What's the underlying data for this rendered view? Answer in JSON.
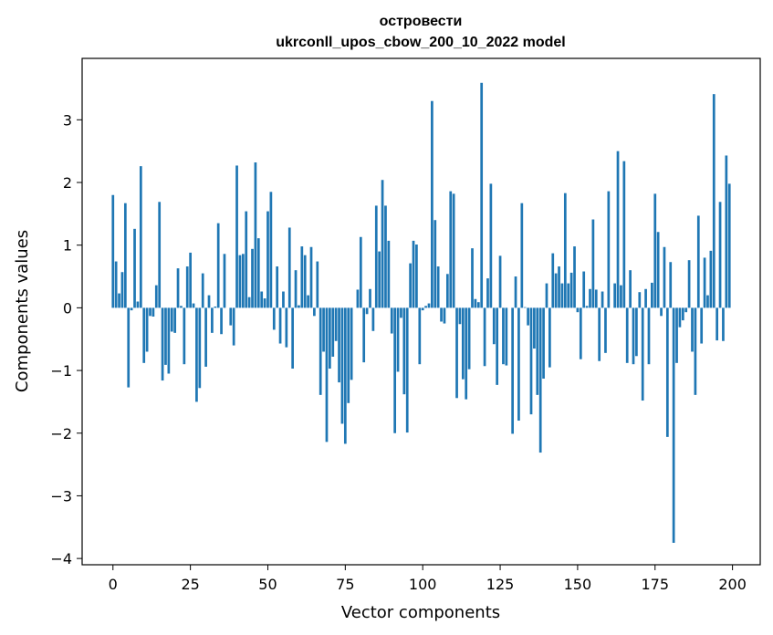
{
  "chart_data": {
    "type": "bar",
    "title": "островести",
    "subtitle": "ukrconll_upos_cbow_200_10_2022 model",
    "xlabel": "Vector components",
    "ylabel": "Components values",
    "xlim": [
      -9.95,
      208.95
    ],
    "ylim": [
      -4.1,
      3.98
    ],
    "xticks": [
      0,
      25,
      50,
      75,
      100,
      125,
      150,
      175,
      200
    ],
    "xtick_labels": [
      "0",
      "25",
      "50",
      "75",
      "100",
      "125",
      "150",
      "175",
      "200"
    ],
    "yticks": [
      -4,
      -3,
      -2,
      -1,
      0,
      1,
      2,
      3
    ],
    "ytick_labels": [
      "−4",
      "−3",
      "−2",
      "−1",
      "0",
      "1",
      "2",
      "3"
    ],
    "grid": false,
    "bar_color": "#1f77b4",
    "x": [
      0,
      1,
      2,
      3,
      4,
      5,
      6,
      7,
      8,
      9,
      10,
      11,
      12,
      13,
      14,
      15,
      16,
      17,
      18,
      19,
      20,
      21,
      22,
      23,
      24,
      25,
      26,
      27,
      28,
      29,
      30,
      31,
      32,
      33,
      34,
      35,
      36,
      37,
      38,
      39,
      40,
      41,
      42,
      43,
      44,
      45,
      46,
      47,
      48,
      49,
      50,
      51,
      52,
      53,
      54,
      55,
      56,
      57,
      58,
      59,
      60,
      61,
      62,
      63,
      64,
      65,
      66,
      67,
      68,
      69,
      70,
      71,
      72,
      73,
      74,
      75,
      76,
      77,
      78,
      79,
      80,
      81,
      82,
      83,
      84,
      85,
      86,
      87,
      88,
      89,
      90,
      91,
      92,
      93,
      94,
      95,
      96,
      97,
      98,
      99,
      100,
      101,
      102,
      103,
      104,
      105,
      106,
      107,
      108,
      109,
      110,
      111,
      112,
      113,
      114,
      115,
      116,
      117,
      118,
      119,
      120,
      121,
      122,
      123,
      124,
      125,
      126,
      127,
      128,
      129,
      130,
      131,
      132,
      133,
      134,
      135,
      136,
      137,
      138,
      139,
      140,
      141,
      142,
      143,
      144,
      145,
      146,
      147,
      148,
      149,
      150,
      151,
      152,
      153,
      154,
      155,
      156,
      157,
      158,
      159,
      160,
      161,
      162,
      163,
      164,
      165,
      166,
      167,
      168,
      169,
      170,
      171,
      172,
      173,
      174,
      175,
      176,
      177,
      178,
      179,
      180,
      181,
      182,
      183,
      184,
      185,
      186,
      187,
      188,
      189,
      190,
      191,
      192,
      193,
      194,
      195,
      196,
      197,
      198,
      199
    ],
    "values": [
      1.8,
      0.74,
      0.23,
      0.57,
      1.67,
      -1.27,
      -0.04,
      1.26,
      0.1,
      2.26,
      -0.88,
      -0.7,
      -0.13,
      -0.14,
      0.36,
      1.69,
      -1.16,
      -0.91,
      -1.05,
      -0.38,
      -0.4,
      0.63,
      0.03,
      -0.9,
      0.66,
      0.88,
      0.07,
      -1.5,
      -1.28,
      0.55,
      -0.94,
      0.2,
      -0.4,
      0.02,
      1.35,
      -0.42,
      0.86,
      0.0,
      -0.28,
      -0.6,
      2.27,
      0.84,
      0.86,
      1.54,
      0.17,
      0.94,
      2.32,
      1.11,
      0.26,
      0.15,
      1.54,
      1.85,
      -0.35,
      0.66,
      -0.57,
      0.26,
      -0.63,
      1.28,
      -0.97,
      0.6,
      0.04,
      0.98,
      0.84,
      0.2,
      0.97,
      -0.13,
      0.74,
      -1.39,
      -0.7,
      -2.14,
      -0.97,
      -0.78,
      -0.53,
      -1.19,
      -1.85,
      -2.17,
      -1.52,
      -1.15,
      0.0,
      0.29,
      1.13,
      -0.87,
      -0.1,
      0.3,
      -0.37,
      1.63,
      0.9,
      2.04,
      1.63,
      1.07,
      -0.41,
      -2.0,
      -1.02,
      -0.16,
      -1.38,
      -1.99,
      0.71,
      1.07,
      1.01,
      -0.9,
      -0.04,
      0.03,
      0.07,
      3.3,
      1.4,
      0.66,
      -0.22,
      -0.25,
      0.54,
      1.86,
      1.82,
      -1.44,
      -0.26,
      -1.14,
      -1.46,
      -0.98,
      0.95,
      0.14,
      0.09,
      3.59,
      -0.93,
      0.47,
      1.98,
      -0.58,
      -1.23,
      0.83,
      -0.9,
      -0.92,
      0.0,
      -2.01,
      0.5,
      -1.8,
      1.67,
      0.01,
      -0.28,
      -1.7,
      -0.65,
      -1.39,
      -2.31,
      -1.13,
      0.39,
      -0.95,
      0.87,
      0.55,
      0.66,
      0.39,
      1.83,
      0.39,
      0.56,
      0.98,
      -0.07,
      -0.82,
      0.58,
      0.03,
      0.3,
      1.41,
      0.29,
      -0.85,
      0.26,
      -0.72,
      1.86,
      0.0,
      0.39,
      2.5,
      0.36,
      2.34,
      -0.88,
      0.6,
      -0.9,
      -0.77,
      0.25,
      -1.48,
      0.3,
      -0.9,
      0.4,
      1.82,
      1.21,
      -0.13,
      0.97,
      -2.06,
      0.73,
      -3.75,
      -0.88,
      -0.31,
      -0.2,
      -0.07,
      0.76,
      -0.7,
      -1.39,
      1.47,
      -0.57,
      0.8,
      0.2,
      0.91,
      3.41,
      -0.52,
      1.69,
      -0.53,
      2.43,
      1.98
    ]
  }
}
